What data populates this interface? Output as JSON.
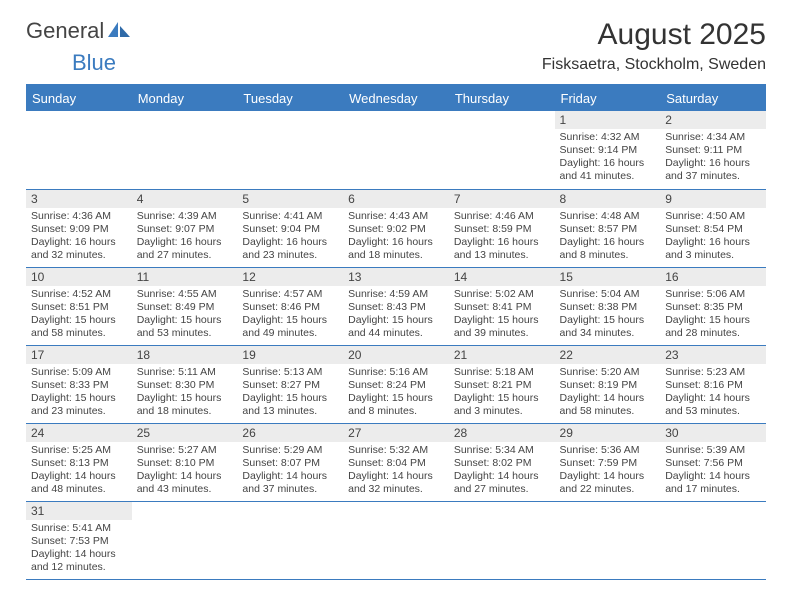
{
  "logo": {
    "part1": "General",
    "part2": "Blue"
  },
  "title": "August 2025",
  "location": "Fisksaetra, Stockholm, Sweden",
  "colors": {
    "header_bg": "#3b7bbf",
    "header_text": "#ffffff",
    "daynum_bg": "#ececec",
    "text": "#444444",
    "rule": "#3b7bbf"
  },
  "weekdays": [
    "Sunday",
    "Monday",
    "Tuesday",
    "Wednesday",
    "Thursday",
    "Friday",
    "Saturday"
  ],
  "days": {
    "1": {
      "sunrise": "4:32 AM",
      "sunset": "9:14 PM",
      "daylight": "16 hours and 41 minutes."
    },
    "2": {
      "sunrise": "4:34 AM",
      "sunset": "9:11 PM",
      "daylight": "16 hours and 37 minutes."
    },
    "3": {
      "sunrise": "4:36 AM",
      "sunset": "9:09 PM",
      "daylight": "16 hours and 32 minutes."
    },
    "4": {
      "sunrise": "4:39 AM",
      "sunset": "9:07 PM",
      "daylight": "16 hours and 27 minutes."
    },
    "5": {
      "sunrise": "4:41 AM",
      "sunset": "9:04 PM",
      "daylight": "16 hours and 23 minutes."
    },
    "6": {
      "sunrise": "4:43 AM",
      "sunset": "9:02 PM",
      "daylight": "16 hours and 18 minutes."
    },
    "7": {
      "sunrise": "4:46 AM",
      "sunset": "8:59 PM",
      "daylight": "16 hours and 13 minutes."
    },
    "8": {
      "sunrise": "4:48 AM",
      "sunset": "8:57 PM",
      "daylight": "16 hours and 8 minutes."
    },
    "9": {
      "sunrise": "4:50 AM",
      "sunset": "8:54 PM",
      "daylight": "16 hours and 3 minutes."
    },
    "10": {
      "sunrise": "4:52 AM",
      "sunset": "8:51 PM",
      "daylight": "15 hours and 58 minutes."
    },
    "11": {
      "sunrise": "4:55 AM",
      "sunset": "8:49 PM",
      "daylight": "15 hours and 53 minutes."
    },
    "12": {
      "sunrise": "4:57 AM",
      "sunset": "8:46 PM",
      "daylight": "15 hours and 49 minutes."
    },
    "13": {
      "sunrise": "4:59 AM",
      "sunset": "8:43 PM",
      "daylight": "15 hours and 44 minutes."
    },
    "14": {
      "sunrise": "5:02 AM",
      "sunset": "8:41 PM",
      "daylight": "15 hours and 39 minutes."
    },
    "15": {
      "sunrise": "5:04 AM",
      "sunset": "8:38 PM",
      "daylight": "15 hours and 34 minutes."
    },
    "16": {
      "sunrise": "5:06 AM",
      "sunset": "8:35 PM",
      "daylight": "15 hours and 28 minutes."
    },
    "17": {
      "sunrise": "5:09 AM",
      "sunset": "8:33 PM",
      "daylight": "15 hours and 23 minutes."
    },
    "18": {
      "sunrise": "5:11 AM",
      "sunset": "8:30 PM",
      "daylight": "15 hours and 18 minutes."
    },
    "19": {
      "sunrise": "5:13 AM",
      "sunset": "8:27 PM",
      "daylight": "15 hours and 13 minutes."
    },
    "20": {
      "sunrise": "5:16 AM",
      "sunset": "8:24 PM",
      "daylight": "15 hours and 8 minutes."
    },
    "21": {
      "sunrise": "5:18 AM",
      "sunset": "8:21 PM",
      "daylight": "15 hours and 3 minutes."
    },
    "22": {
      "sunrise": "5:20 AM",
      "sunset": "8:19 PM",
      "daylight": "14 hours and 58 minutes."
    },
    "23": {
      "sunrise": "5:23 AM",
      "sunset": "8:16 PM",
      "daylight": "14 hours and 53 minutes."
    },
    "24": {
      "sunrise": "5:25 AM",
      "sunset": "8:13 PM",
      "daylight": "14 hours and 48 minutes."
    },
    "25": {
      "sunrise": "5:27 AM",
      "sunset": "8:10 PM",
      "daylight": "14 hours and 43 minutes."
    },
    "26": {
      "sunrise": "5:29 AM",
      "sunset": "8:07 PM",
      "daylight": "14 hours and 37 minutes."
    },
    "27": {
      "sunrise": "5:32 AM",
      "sunset": "8:04 PM",
      "daylight": "14 hours and 32 minutes."
    },
    "28": {
      "sunrise": "5:34 AM",
      "sunset": "8:02 PM",
      "daylight": "14 hours and 27 minutes."
    },
    "29": {
      "sunrise": "5:36 AM",
      "sunset": "7:59 PM",
      "daylight": "14 hours and 22 minutes."
    },
    "30": {
      "sunrise": "5:39 AM",
      "sunset": "7:56 PM",
      "daylight": "14 hours and 17 minutes."
    },
    "31": {
      "sunrise": "5:41 AM",
      "sunset": "7:53 PM",
      "daylight": "14 hours and 12 minutes."
    }
  },
  "labels": {
    "sunrise": "Sunrise: ",
    "sunset": "Sunset: ",
    "daylight": "Daylight: "
  },
  "grid": {
    "first_weekday_index": 5,
    "num_days": 31
  }
}
